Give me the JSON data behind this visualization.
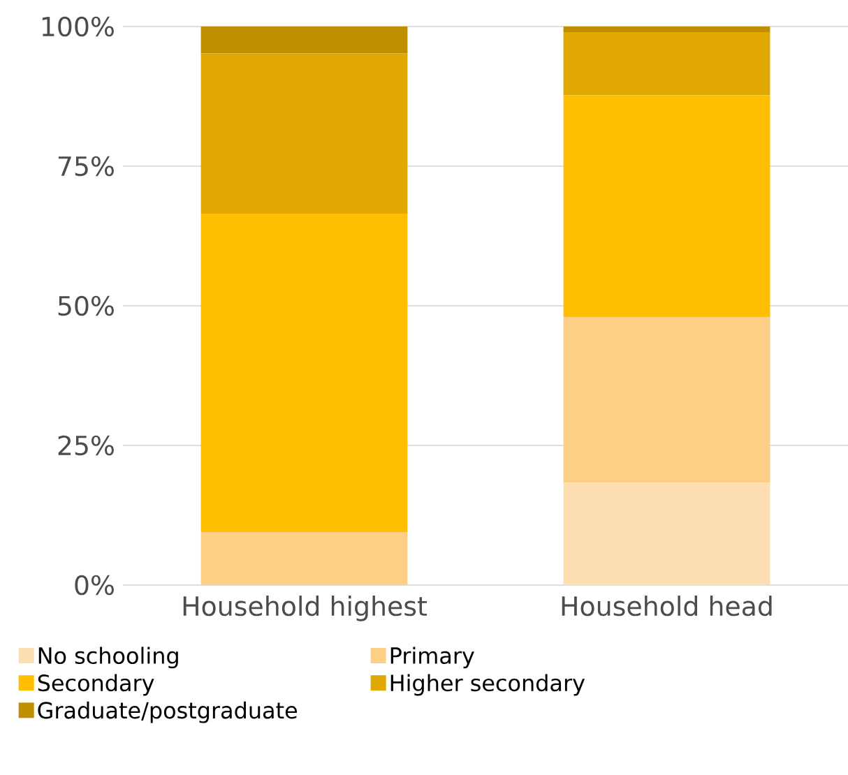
{
  "chart_data": {
    "type": "bar",
    "stacked": true,
    "categories": [
      "Household highest",
      "Household head"
    ],
    "series": [
      {
        "name": "No schooling",
        "color": "#fddeb3",
        "values": [
          0,
          18.3
        ]
      },
      {
        "name": "Primary",
        "color": "#fdce85",
        "values": [
          9.5,
          29.7
        ]
      },
      {
        "name": "Secondary",
        "color": "#ffbf00",
        "values": [
          57,
          39.7
        ]
      },
      {
        "name": "Higher secondary",
        "color": "#e0a800",
        "values": [
          28.7,
          11.3
        ]
      },
      {
        "name": "Graduate/postgraduate",
        "color": "#bf8f00",
        "values": [
          4.8,
          1
        ]
      }
    ],
    "ylim": [
      0,
      100
    ],
    "yticks": [
      {
        "value": 0,
        "label": "0%"
      },
      {
        "value": 25,
        "label": "25%"
      },
      {
        "value": 50,
        "label": "50%"
      },
      {
        "value": 75,
        "label": "75%"
      },
      {
        "value": 100,
        "label": "100%"
      }
    ],
    "grid": "y",
    "legend": "bottom"
  }
}
